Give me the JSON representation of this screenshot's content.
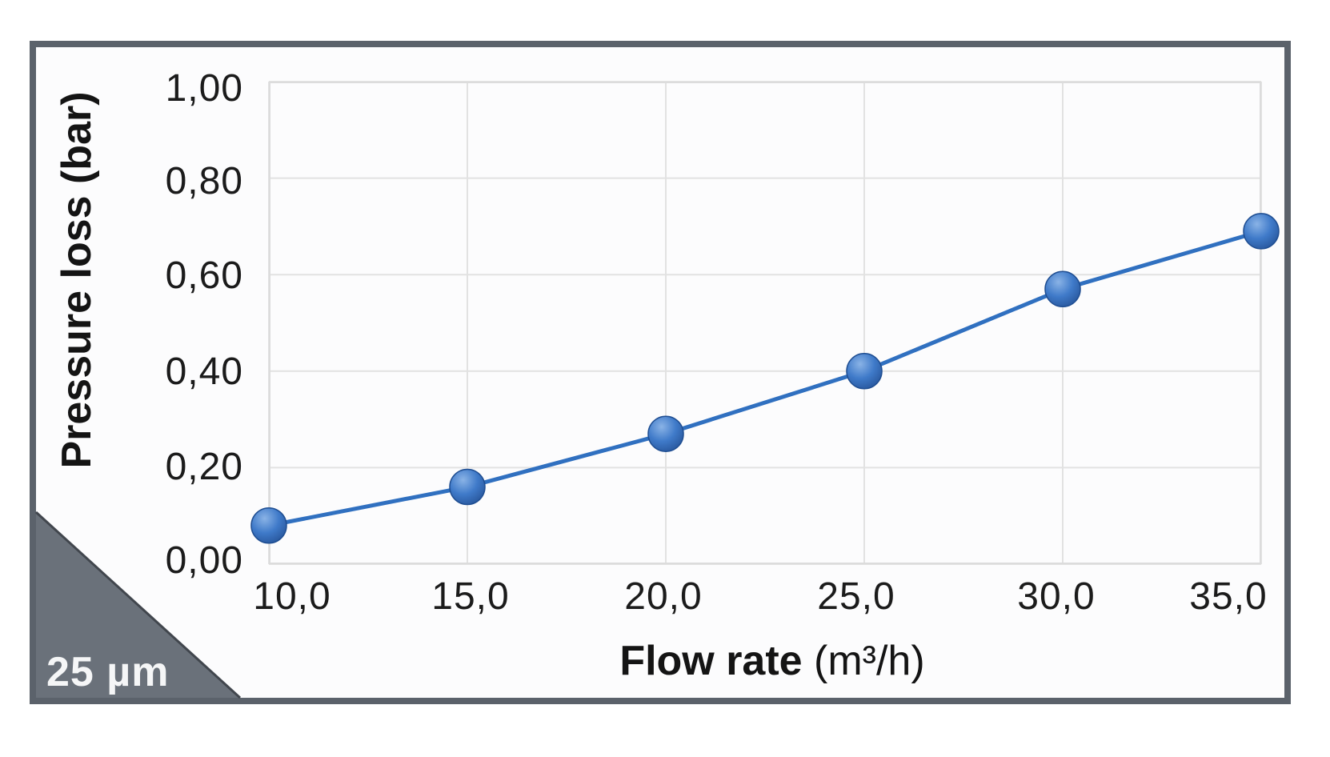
{
  "chart": {
    "y_axis_title": "Pressure loss (bar)",
    "x_axis_title_bold": "Flow rate",
    "x_axis_title_unit": "(m³/h)",
    "badge_label": "25 µm",
    "y_ticks": [
      "1,00",
      "0,80",
      "0,60",
      "0,40",
      "0,20",
      "0,00"
    ],
    "x_ticks": [
      "10,0",
      "15,0",
      "20,0",
      "25,0",
      "30,0",
      "35,0"
    ]
  },
  "colors": {
    "frame_border": "#5b626b",
    "panel_background": "#fcfcfd",
    "gridline": "#e2e2e2",
    "plot_border": "#dcdcdc",
    "line": "#3070c0",
    "marker_highlight": "#8ab3e6",
    "marker_mid": "#3f7ac9",
    "marker_dark": "#29589e",
    "marker_edge": "#1f4e92",
    "badge_triangle": "#6a717a",
    "badge_triangle_edge": "#41464d",
    "badge_text": "#f5f6f7",
    "axis_text": "#1b1b1b"
  },
  "chart_data": {
    "type": "line",
    "x": [
      10.0,
      15.0,
      20.0,
      25.0,
      30.0,
      35.0
    ],
    "series": [
      {
        "name": "25 µm",
        "values": [
          0.08,
          0.16,
          0.27,
          0.4,
          0.57,
          0.69
        ]
      }
    ],
    "title": "",
    "xlabel": "Flow rate (m³/h)",
    "ylabel": "Pressure loss (bar)",
    "xlim": [
      10,
      35
    ],
    "ylim": [
      0,
      1.0
    ],
    "x_tick_values": [
      10.0,
      15.0,
      20.0,
      25.0,
      30.0,
      35.0
    ],
    "y_tick_values": [
      0.0,
      0.2,
      0.4,
      0.6,
      0.8,
      1.0
    ],
    "grid": true,
    "legend_position": "none",
    "marker_style": "sphere"
  }
}
